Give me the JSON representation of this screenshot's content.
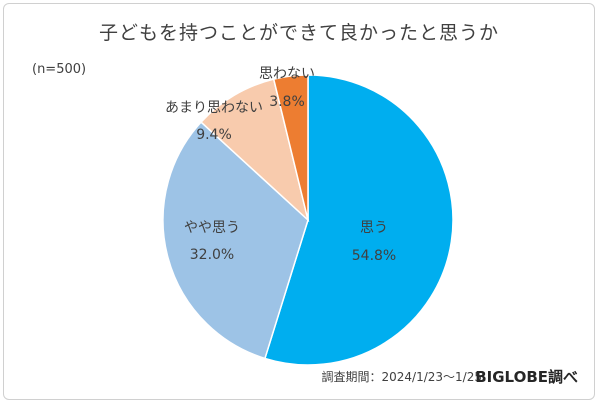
{
  "title": "子どもを持つことができて良かったと思うか",
  "sample_size": "(n=500)",
  "footer": {
    "survey_period": "調査期間：2024/1/23～1/25",
    "brand": "BIGLOBE調べ"
  },
  "chart_data": {
    "type": "pie",
    "title": "子どもを持つことができて良かったと思うか",
    "slices": [
      {
        "label": "思う",
        "value": 54.8,
        "value_label": "54.8%",
        "color": "#00aeef"
      },
      {
        "label": "やや思う",
        "value": 32.0,
        "value_label": "32.0%",
        "color": "#9dc3e6"
      },
      {
        "label": "あまり思わない",
        "value": 9.4,
        "value_label": "9.4%",
        "color": "#f8cbad"
      },
      {
        "label": "思わない",
        "value": 3.8,
        "value_label": "3.8%",
        "color": "#ed7d31"
      }
    ]
  }
}
